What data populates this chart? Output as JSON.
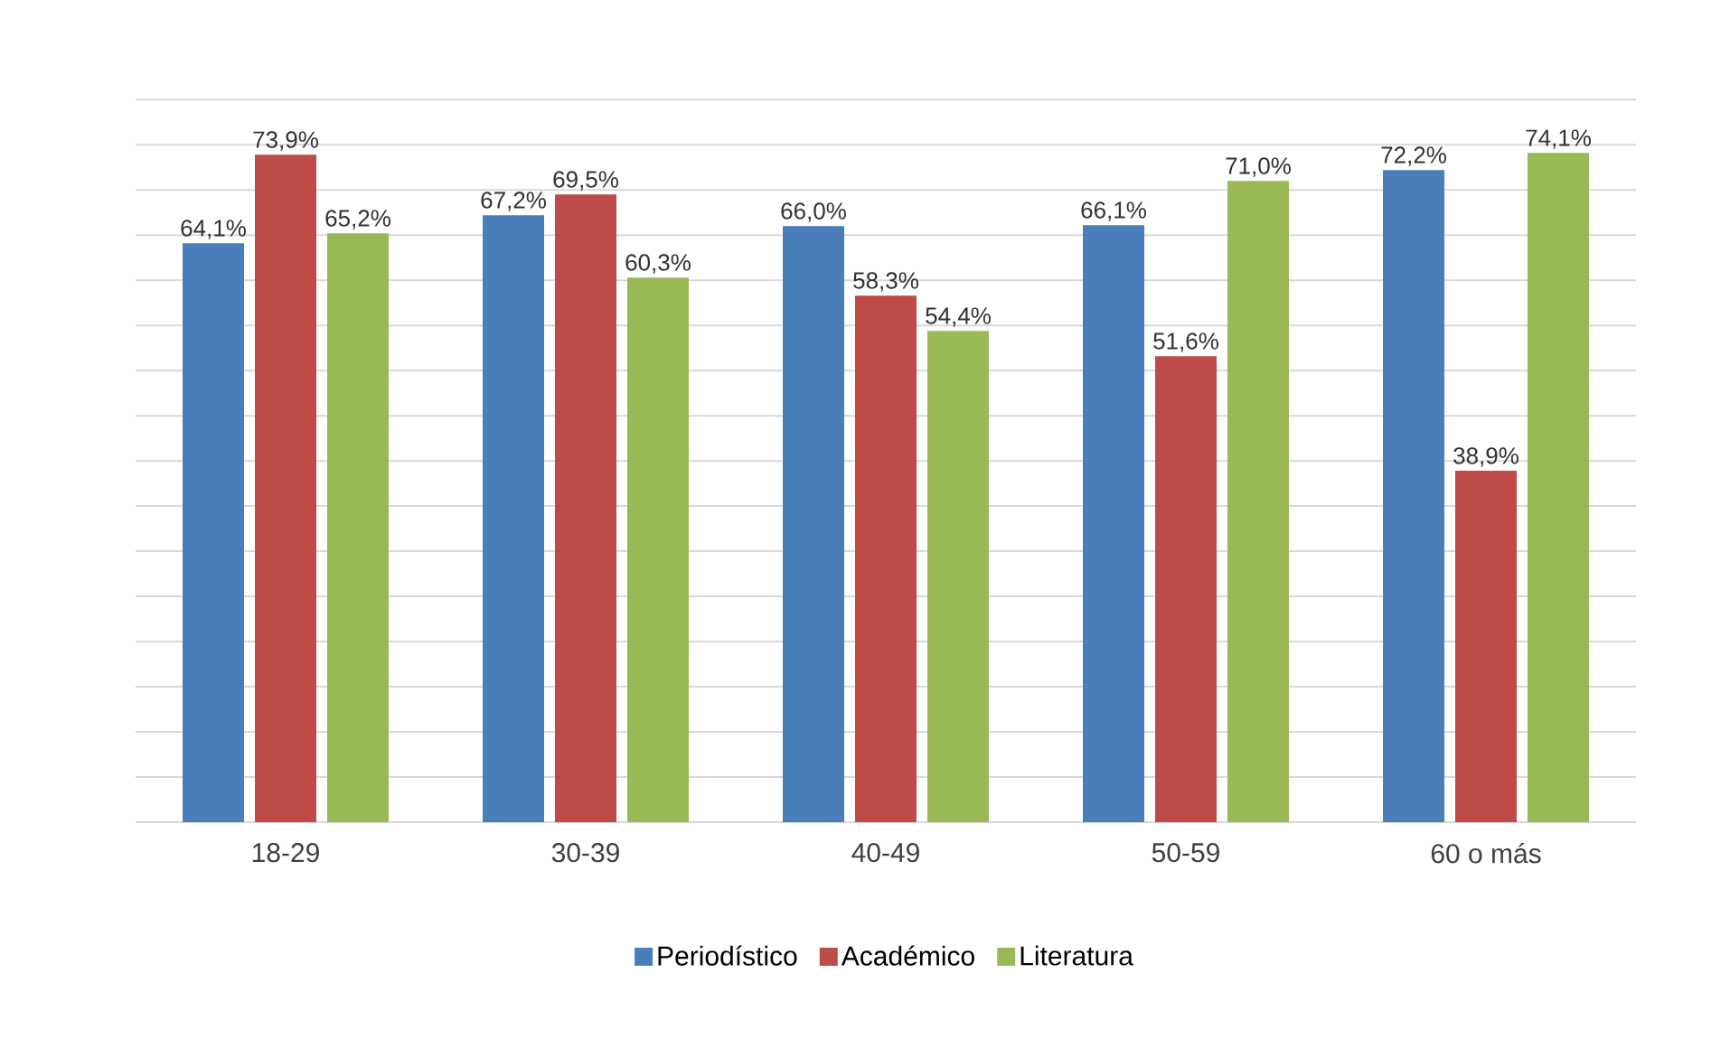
{
  "chart_data": {
    "type": "bar",
    "categories": [
      "18-29",
      "30-39",
      "40-49",
      "50-59",
      "60 o más"
    ],
    "series": [
      {
        "name": "Periodístico",
        "color": "#4a7ebb",
        "values": [
          64.1,
          67.2,
          66.0,
          66.1,
          72.2
        ],
        "value_labels": [
          "64,1%",
          "67,2%",
          "66,0%",
          "66,1%",
          "72,2%"
        ]
      },
      {
        "name": "Académico",
        "color": "#be4b48",
        "values": [
          73.9,
          69.5,
          58.3,
          51.6,
          38.9
        ],
        "value_labels": [
          "73,9%",
          "69,5%",
          "58,3%",
          "51,6%",
          "38,9%"
        ]
      },
      {
        "name": "Literatura",
        "color": "#98b954",
        "values": [
          65.2,
          60.3,
          54.4,
          71.0,
          74.1
        ],
        "value_labels": [
          "65,2%",
          "60,3%",
          "54,4%",
          "71,0%",
          "74,1%"
        ]
      }
    ],
    "tick_labels": "x",
    "grid": "y",
    "legend": "bottom"
  }
}
